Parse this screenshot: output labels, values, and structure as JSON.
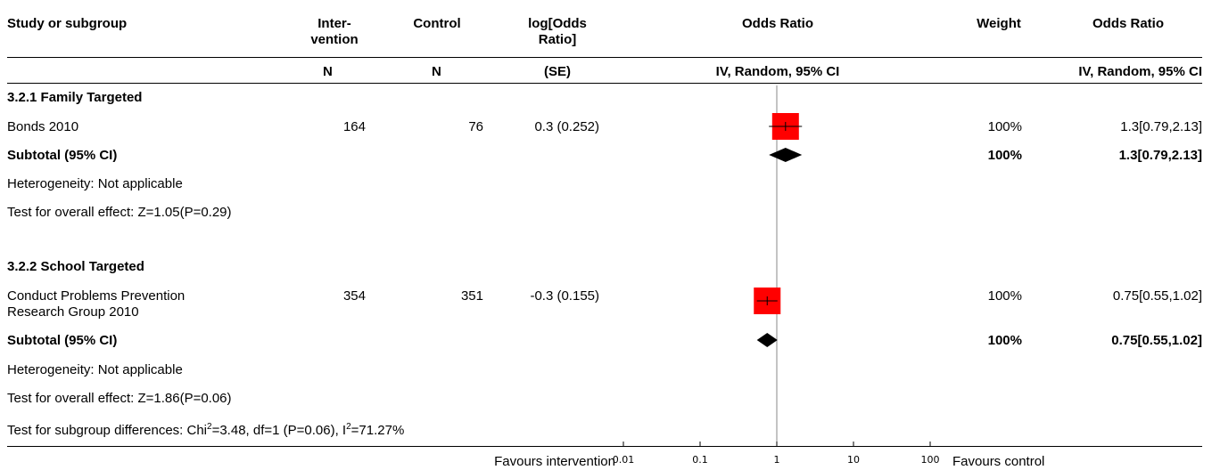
{
  "header": {
    "study": "Study or subgroup",
    "intervention": [
      "Inter-",
      "vention"
    ],
    "control": "Control",
    "logor": [
      "log[Odds",
      "Ratio]"
    ],
    "or_plot": "Odds Ratio",
    "weight": "Weight",
    "or_text": "Odds Ratio",
    "n1": "N",
    "n2": "N",
    "se": "(SE)",
    "method_plot": "IV, Random, 95% CI",
    "method_text": "IV, Random, 95% CI"
  },
  "groups": [
    {
      "title": "3.2.1 Family Targeted",
      "studies": [
        {
          "name": [
            "Bonds 2010"
          ],
          "n_int": "164",
          "n_ctrl": "76",
          "logor_se": "0.3 (0.252)",
          "weight": "100%",
          "or_ci": "1.3[0.79,2.13]"
        }
      ],
      "subtotal": {
        "label": "Subtotal (95% CI)",
        "weight": "100%",
        "or_ci": "1.3[0.79,2.13]"
      },
      "heterogeneity": "Heterogeneity: Not applicable",
      "overall": "Test for overall effect: Z=1.05(P=0.29)"
    },
    {
      "title": "3.2.2 School Targeted",
      "studies": [
        {
          "name": [
            "Conduct Problems Prevention",
            "Research Group 2010"
          ],
          "n_int": "354",
          "n_ctrl": "351",
          "logor_se": "-0.3 (0.155)",
          "weight": "100%",
          "or_ci": "0.75[0.55,1.02]"
        }
      ],
      "subtotal": {
        "label": "Subtotal (95% CI)",
        "weight": "100%",
        "or_ci": "0.75[0.55,1.02]"
      },
      "heterogeneity": "Heterogeneity: Not applicable",
      "overall": "Test for overall effect: Z=1.86(P=0.06)"
    }
  ],
  "subgroup_test": {
    "pre": "Test for subgroup differences: Chi",
    "sup1": "2",
    "mid": "=3.48, df=1 (P=0.06), I",
    "sup2": "2",
    "post": "=71.27%"
  },
  "footer": {
    "left": "Favours intervention",
    "right": "Favours control"
  },
  "chart_data": {
    "type": "scatter",
    "subtype": "forest-plot",
    "xscale": "log",
    "xlim": [
      0.01,
      100
    ],
    "xticks": [
      "0.01",
      "0.1",
      "1",
      "10",
      "100"
    ],
    "xtick_values": [
      0.01,
      0.1,
      1,
      10,
      100
    ],
    "null_line": 1,
    "colors": {
      "study_box": "#ff0000",
      "diamond": "#000000"
    },
    "studies": [
      {
        "group": 0,
        "or": 1.3,
        "ci_low": 0.79,
        "ci_high": 2.13,
        "weight": 100
      },
      {
        "group": 1,
        "or": 0.75,
        "ci_low": 0.55,
        "ci_high": 1.02,
        "weight": 100
      }
    ],
    "subtotals": [
      {
        "group": 0,
        "or": 1.3,
        "ci_low": 0.79,
        "ci_high": 2.13
      },
      {
        "group": 1,
        "or": 0.75,
        "ci_low": 0.55,
        "ci_high": 1.02
      }
    ]
  }
}
